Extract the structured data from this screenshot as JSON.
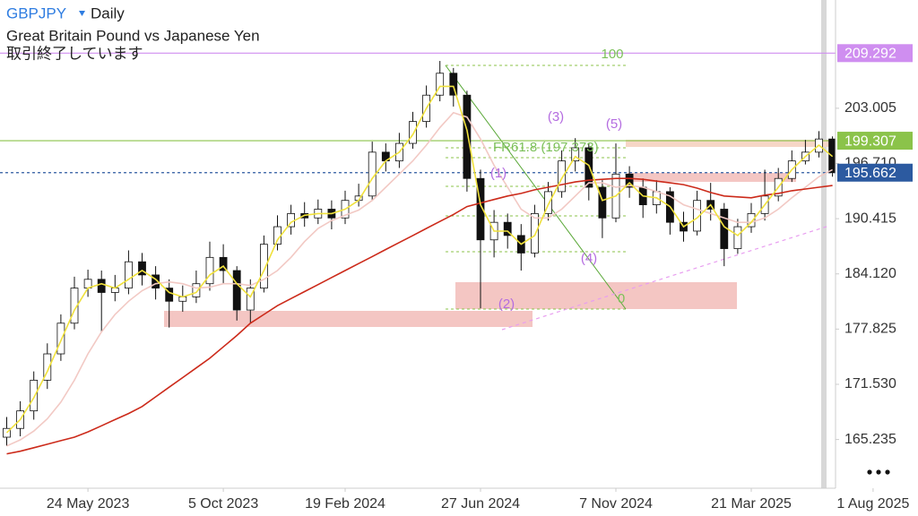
{
  "header": {
    "symbol": "GBPJPY",
    "timeframe": "Daily",
    "description": "Great Britain Pound vs Japanese Yen",
    "status": "取引終了しています"
  },
  "chart_data": {
    "type": "candlestick",
    "categories": [
      null,
      null,
      null,
      null,
      null,
      null,
      "24 May 2023",
      null,
      null,
      null,
      null,
      null,
      null,
      null,
      null,
      null,
      "5 Oct 2023",
      null,
      null,
      null,
      null,
      null,
      null,
      null,
      null,
      "19 Feb 2024",
      null,
      null,
      null,
      null,
      null,
      null,
      null,
      null,
      null,
      "27 Jun 2024",
      null,
      null,
      null,
      null,
      null,
      null,
      null,
      null,
      null,
      "7 Nov 2024",
      null,
      null,
      null,
      null,
      null,
      null,
      null,
      null,
      null,
      "21 Mar 2025",
      null,
      null,
      null,
      null,
      null,
      null,
      null,
      null,
      "1 Aug 2025"
    ],
    "open": [
      165.5,
      166.5,
      168.5,
      172.0,
      175.0,
      178.5,
      182.5,
      183.5,
      182.0,
      182.5,
      185.5,
      184.0,
      182.5,
      181.0,
      181.5,
      183.0,
      186.0,
      184.5,
      180.0,
      182.5,
      187.5,
      189.5,
      191.0,
      190.5,
      191.5,
      190.5,
      192.5,
      193.0,
      198.0,
      197.0,
      199.0,
      201.5,
      204.5,
      207.0,
      204.5,
      195.0,
      188.0,
      190.0,
      188.5,
      186.5,
      191.0,
      193.5,
      197.0,
      198.5,
      194.0,
      190.5,
      195.5,
      194.0,
      192.0,
      193.5,
      190.0,
      189.0,
      192.5,
      191.5,
      187.0,
      189.5,
      191.0,
      193.0,
      195.0,
      197.0,
      198.0,
      199.5,
      null,
      null,
      null
    ],
    "high": [
      167.8,
      169.6,
      173.0,
      176.2,
      179.5,
      183.8,
      184.6,
      184.5,
      184.0,
      186.8,
      186.5,
      185.0,
      183.5,
      182.8,
      184.5,
      187.8,
      187.5,
      185.0,
      183.5,
      188.5,
      190.8,
      192.0,
      192.3,
      192.6,
      192.5,
      193.6,
      194.4,
      199.2,
      199.0,
      200.2,
      202.6,
      205.6,
      208.4,
      207.6,
      205.0,
      196.0,
      191.4,
      191.0,
      189.8,
      192.0,
      194.6,
      198.2,
      199.6,
      199.0,
      194.8,
      199.0,
      196.4,
      195.0,
      194.8,
      194.0,
      191.2,
      193.6,
      194.5,
      192.2,
      190.4,
      192.2,
      196.0,
      196.2,
      198.2,
      199.4,
      200.4,
      199.8,
      null,
      null,
      null
    ],
    "low": [
      164.5,
      165.6,
      167.5,
      171.0,
      174.2,
      177.8,
      181.5,
      177.5,
      181.0,
      181.8,
      182.8,
      181.2,
      178.0,
      179.8,
      180.8,
      182.2,
      183.0,
      178.8,
      178.5,
      182.0,
      186.8,
      188.6,
      189.5,
      189.8,
      189.2,
      189.8,
      191.8,
      192.5,
      195.8,
      196.2,
      198.4,
      200.8,
      203.8,
      203.2,
      193.5,
      180.2,
      186.0,
      187.0,
      184.5,
      186.0,
      190.2,
      192.8,
      195.8,
      192.5,
      188.2,
      190.0,
      192.8,
      190.5,
      191.0,
      188.6,
      187.8,
      188.5,
      190.2,
      185.0,
      186.4,
      188.8,
      190.2,
      192.4,
      194.6,
      196.6,
      197.4,
      195.2,
      null,
      null,
      null
    ],
    "close": [
      166.5,
      168.5,
      172.0,
      175.0,
      178.5,
      182.5,
      183.5,
      182.0,
      182.5,
      185.5,
      184.0,
      182.5,
      181.0,
      181.5,
      183.0,
      186.0,
      184.5,
      180.0,
      182.5,
      187.5,
      189.5,
      191.0,
      190.5,
      191.5,
      190.5,
      192.5,
      193.0,
      198.0,
      197.0,
      199.0,
      201.5,
      204.5,
      207.0,
      204.5,
      195.0,
      188.0,
      190.0,
      188.5,
      186.5,
      191.0,
      193.5,
      197.0,
      198.5,
      194.0,
      190.5,
      195.5,
      194.0,
      192.0,
      193.5,
      190.0,
      189.0,
      192.5,
      191.5,
      187.0,
      189.5,
      191.0,
      193.0,
      195.0,
      197.0,
      198.0,
      199.5,
      195.662,
      null,
      null,
      null
    ],
    "overlays": [
      {
        "color": "#f2c9c4",
        "values": [
          164.5,
          165.2,
          166.2,
          167.6,
          169.5,
          172.0,
          175.0,
          177.5,
          179.5,
          181.0,
          182.2,
          183.0,
          183.2,
          183.0,
          182.5,
          182.6,
          183.0,
          183.0,
          182.8,
          183.5,
          184.5,
          186.0,
          187.8,
          189.3,
          190.2,
          190.8,
          191.4,
          192.5,
          194.0,
          195.5,
          197.0,
          198.8,
          200.8,
          202.5,
          202.0,
          199.5,
          196.5,
          194.0,
          191.5,
          190.5,
          190.5,
          191.5,
          193.0,
          194.5,
          194.5,
          194.0,
          194.2,
          194.0,
          193.5,
          193.0,
          192.0,
          191.5,
          191.0,
          190.5,
          190.0,
          190.0,
          190.5,
          191.5,
          192.8,
          194.0,
          195.2,
          196.0,
          null,
          null,
          null
        ]
      },
      {
        "color": "#cc2a1a",
        "values": [
          163.6,
          163.9,
          164.3,
          164.7,
          165.1,
          165.5,
          166.1,
          166.8,
          167.5,
          168.2,
          169.0,
          170.1,
          171.2,
          172.3,
          173.4,
          174.5,
          175.8,
          177.1,
          178.5,
          179.5,
          180.5,
          181.3,
          182.1,
          182.9,
          183.7,
          184.5,
          185.3,
          186.1,
          186.9,
          187.7,
          188.5,
          189.3,
          190.1,
          190.9,
          191.8,
          192.2,
          192.6,
          193.0,
          193.3,
          193.7,
          194.0,
          194.3,
          194.6,
          194.8,
          194.9,
          195.0,
          195.0,
          194.9,
          194.7,
          194.5,
          194.3,
          193.9,
          193.4,
          193.0,
          192.9,
          192.8,
          193.1,
          193.3,
          193.6,
          193.8,
          194.0,
          194.2,
          null,
          null,
          null
        ]
      },
      {
        "color": "#f0e13c",
        "values": [
          166.0,
          167.5,
          170.0,
          173.0,
          176.5,
          180.0,
          182.5,
          183.0,
          182.5,
          183.5,
          184.5,
          183.5,
          182.0,
          181.5,
          182.0,
          184.0,
          185.0,
          183.0,
          181.5,
          184.5,
          188.0,
          190.0,
          190.8,
          191.0,
          191.0,
          191.5,
          192.5,
          195.0,
          197.0,
          198.0,
          200.0,
          203.0,
          205.5,
          205.5,
          200.5,
          192.0,
          189.0,
          189.0,
          187.5,
          188.5,
          192.0,
          195.0,
          197.5,
          196.5,
          192.5,
          193.0,
          194.5,
          193.0,
          192.8,
          191.8,
          189.5,
          190.5,
          192.0,
          189.5,
          188.5,
          190.0,
          192.0,
          194.0,
          196.0,
          197.5,
          198.8,
          197.5,
          null,
          null,
          null
        ]
      }
    ],
    "up_color": "#ffffff",
    "down_color": "#111111",
    "ylim": [
      159.68,
      215.35
    ],
    "yticks": [
      {
        "value": 165.235,
        "label": "165.235"
      },
      {
        "value": 171.53,
        "label": "171.530"
      },
      177.825,
      {
        "value": 184.12,
        "label": "184.120"
      },
      190.415,
      {
        "value": 196.71,
        "label": "196.710"
      },
      203.005
    ],
    "price_lines": [
      {
        "value": 209.292,
        "color": "#cf8ef0",
        "dashed": false
      },
      {
        "value": 199.307,
        "color": "#8bc34a",
        "dashed": false
      },
      {
        "value": 195.662,
        "color": "#2c5aa0",
        "dashed": true
      }
    ],
    "fib_labels": [
      "100",
      "FR61.8 (197.373)",
      "0"
    ],
    "wave_labels": [
      "(1)",
      "(2)",
      "(3)",
      "(4)",
      "(5)"
    ]
  }
}
